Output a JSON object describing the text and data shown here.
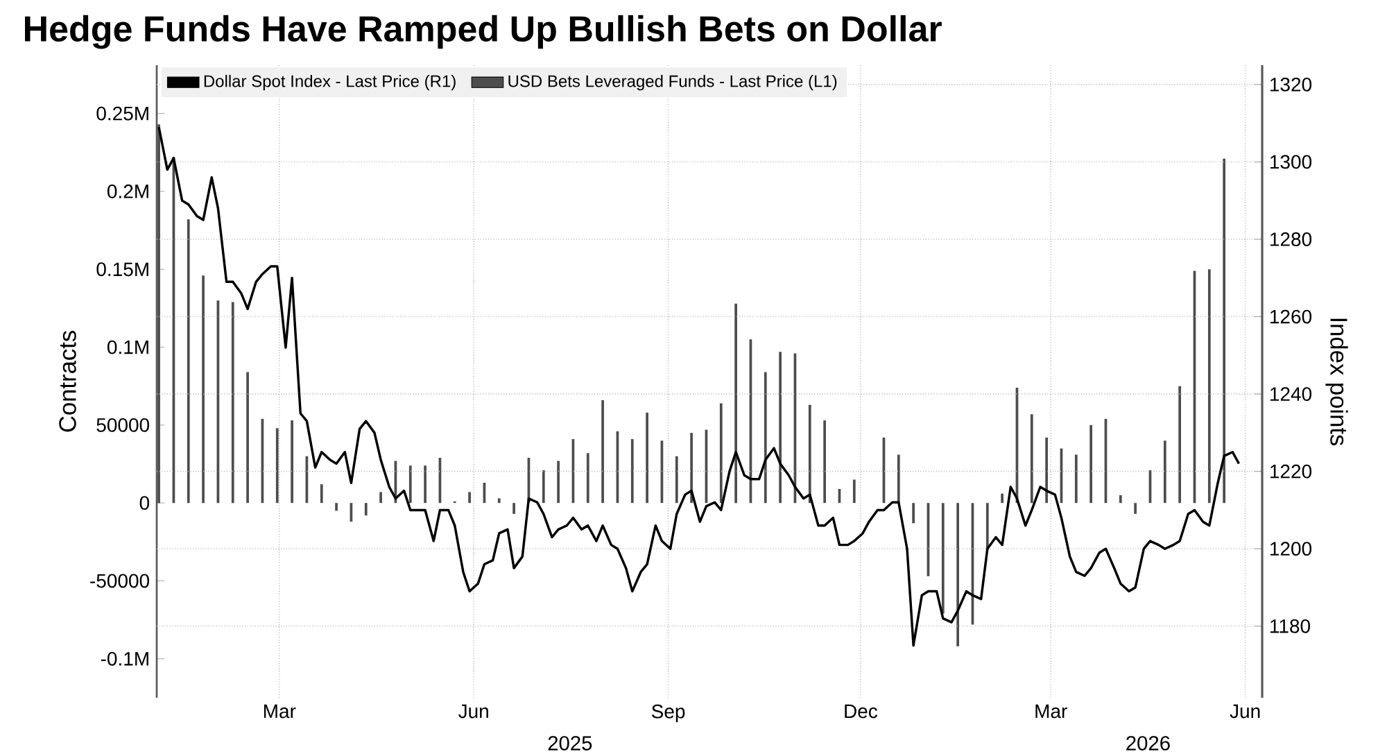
{
  "chart_data": {
    "type": "bar",
    "title": "Hedge Funds Have Ramped Up Bullish Bets on Dollar",
    "ylabel": "Contracts",
    "y2label": "Index points",
    "xlim": [
      "2025-01-02",
      "2026-06-09"
    ],
    "xticks": [
      {
        "value": "2025-03-01",
        "label": "Mar"
      },
      {
        "value": "2025-06-01",
        "label": "Jun"
      },
      {
        "value": "2025-09-01",
        "label": "Sep"
      },
      {
        "value": "2025-12-01",
        "label": "Dec"
      },
      {
        "value": "2026-03-01",
        "label": "Mar"
      },
      {
        "value": "2026-06-01",
        "label": "Jun"
      }
    ],
    "ylim": [
      -125000,
      281000
    ],
    "yticks": [
      {
        "value": -100000,
        "label": "-0.1M"
      },
      -50000,
      0,
      50000,
      {
        "value": 100000,
        "label": "0.1M"
      },
      {
        "value": 150000,
        "label": "0.15M"
      },
      {
        "value": 200000,
        "label": "0.2M"
      },
      {
        "value": 250000,
        "label": "0.25M"
      }
    ],
    "y2lim": [
      1161.5,
      1325
    ],
    "y2ticks": [
      1180,
      1200,
      1220,
      1240,
      1260,
      1280,
      1300,
      1320
    ],
    "grid": true,
    "legend": "top left",
    "annotations": [
      "2025",
      "2026"
    ],
    "series": [
      {
        "name": "Dollar Spot Index - Last Price (R1)",
        "type": "line",
        "axis": "y2",
        "color": "#000000",
        "x": [
          "2025-01-03",
          "2025-01-07",
          "2025-01-10",
          "2025-01-14",
          "2025-01-17",
          "2025-01-21",
          "2025-01-24",
          "2025-01-28",
          "2025-01-31",
          "2025-02-04",
          "2025-02-07",
          "2025-02-11",
          "2025-02-14",
          "2025-02-18",
          "2025-02-21",
          "2025-02-25",
          "2025-02-28",
          "2025-03-04",
          "2025-03-07",
          "2025-03-11",
          "2025-03-14",
          "2025-03-18",
          "2025-03-21",
          "2025-03-25",
          "2025-03-28",
          "2025-04-01",
          "2025-04-04",
          "2025-04-08",
          "2025-04-11",
          "2025-04-15",
          "2025-04-18",
          "2025-04-22",
          "2025-04-25",
          "2025-04-29",
          "2025-05-02",
          "2025-05-06",
          "2025-05-09",
          "2025-05-13",
          "2025-05-16",
          "2025-05-20",
          "2025-05-23",
          "2025-05-27",
          "2025-05-30",
          "2025-06-03",
          "2025-06-06",
          "2025-06-10",
          "2025-06-13",
          "2025-06-17",
          "2025-06-20",
          "2025-06-24",
          "2025-06-27",
          "2025-07-01",
          "2025-07-04",
          "2025-07-08",
          "2025-07-11",
          "2025-07-15",
          "2025-07-18",
          "2025-07-22",
          "2025-07-25",
          "2025-07-29",
          "2025-08-01",
          "2025-08-05",
          "2025-08-08",
          "2025-08-12",
          "2025-08-15",
          "2025-08-19",
          "2025-08-22",
          "2025-08-26",
          "2025-08-29",
          "2025-09-02",
          "2025-09-05",
          "2025-09-09",
          "2025-09-12",
          "2025-09-16",
          "2025-09-19",
          "2025-09-23",
          "2025-09-26",
          "2025-09-30",
          "2025-10-03",
          "2025-10-07",
          "2025-10-10",
          "2025-10-14",
          "2025-10-17",
          "2025-10-21",
          "2025-10-24",
          "2025-10-28",
          "2025-10-31",
          "2025-11-04",
          "2025-11-07",
          "2025-11-11",
          "2025-11-14",
          "2025-11-18",
          "2025-11-21",
          "2025-11-25",
          "2025-11-28",
          "2025-12-02",
          "2025-12-05",
          "2025-12-09",
          "2025-12-12",
          "2025-12-16",
          "2025-12-19",
          "2025-12-23",
          "2025-12-26",
          "2025-12-30",
          "2026-01-02",
          "2026-01-06",
          "2026-01-09",
          "2026-01-13",
          "2026-01-16",
          "2026-01-20",
          "2026-01-23",
          "2026-01-27",
          "2026-01-30",
          "2026-02-03",
          "2026-02-06",
          "2026-02-10",
          "2026-02-13",
          "2026-02-17",
          "2026-02-20",
          "2026-02-24",
          "2026-02-27",
          "2026-03-03",
          "2026-03-06",
          "2026-03-10",
          "2026-03-13",
          "2026-03-17",
          "2026-03-20",
          "2026-03-24",
          "2026-03-27",
          "2026-03-31",
          "2026-04-03",
          "2026-04-07",
          "2026-04-10",
          "2026-04-14",
          "2026-04-17",
          "2026-04-21",
          "2026-04-24",
          "2026-04-28",
          "2026-05-01",
          "2026-05-05",
          "2026-05-08",
          "2026-05-12",
          "2026-05-15",
          "2026-05-19",
          "2026-05-22",
          "2026-05-26",
          "2026-05-29"
        ],
        "values": [
          1309,
          1298,
          1301,
          1290,
          1289,
          1286,
          1285,
          1296,
          1288,
          1269,
          1269,
          1266,
          1262,
          1269,
          1271,
          1273,
          1273,
          1252,
          1270,
          1235,
          1233,
          1221,
          1225,
          1223,
          1222,
          1225,
          1217,
          1231,
          1233,
          1230,
          1223,
          1216,
          1213,
          1215,
          1210,
          1210,
          1210,
          1202,
          1210,
          1210,
          1206,
          1194,
          1189,
          1191,
          1196,
          1197,
          1204,
          1205,
          1195,
          1198,
          1213,
          1212,
          1209,
          1203,
          1205,
          1206,
          1208,
          1205,
          1206,
          1202,
          1206,
          1201,
          1200,
          1195,
          1189,
          1194,
          1196,
          1206,
          1202,
          1200,
          1209,
          1214,
          1215,
          1207,
          1211,
          1212,
          1210,
          1220,
          1225,
          1219,
          1218,
          1218,
          1223,
          1226,
          1222,
          1219,
          1216,
          1213,
          1214,
          1206,
          1206,
          1208,
          1201,
          1201,
          1202,
          1204,
          1207,
          1210,
          1210,
          1212,
          1212,
          1200,
          1175,
          1188,
          1189,
          1189,
          1182,
          1181,
          1184,
          1189,
          1188,
          1187,
          1200,
          1203,
          1201,
          1216,
          1213,
          1206,
          1210,
          1216,
          1215,
          1214,
          1208,
          1198,
          1194,
          1193,
          1195,
          1199,
          1200,
          1195,
          1191,
          1189,
          1190,
          1200,
          1202,
          1201,
          1200,
          1201,
          1202,
          1209,
          1210,
          1207,
          1206,
          1217,
          1224,
          1225,
          1222
        ]
      },
      {
        "name": "USD Bets Leveraged Funds - Last Price (L1)",
        "axis": "y",
        "color": "#4d4d4d",
        "x": [
          "2025-01-03",
          "2025-01-10",
          "2025-01-17",
          "2025-01-24",
          "2025-01-31",
          "2025-02-07",
          "2025-02-14",
          "2025-02-21",
          "2025-02-28",
          "2025-03-07",
          "2025-03-14",
          "2025-03-21",
          "2025-03-28",
          "2025-04-04",
          "2025-04-11",
          "2025-04-18",
          "2025-04-25",
          "2025-05-02",
          "2025-05-09",
          "2025-05-16",
          "2025-05-23",
          "2025-05-30",
          "2025-06-06",
          "2025-06-13",
          "2025-06-20",
          "2025-06-27",
          "2025-07-04",
          "2025-07-11",
          "2025-07-18",
          "2025-07-25",
          "2025-08-01",
          "2025-08-08",
          "2025-08-15",
          "2025-08-22",
          "2025-08-29",
          "2025-09-05",
          "2025-09-12",
          "2025-09-19",
          "2025-09-26",
          "2025-10-03",
          "2025-10-10",
          "2025-10-17",
          "2025-10-24",
          "2025-10-31",
          "2025-11-07",
          "2025-11-14",
          "2025-11-21",
          "2025-11-28",
          "2025-12-05",
          "2025-12-12",
          "2025-12-19",
          "2025-12-26",
          "2026-01-02",
          "2026-01-09",
          "2026-01-16",
          "2026-01-23",
          "2026-01-30",
          "2026-02-06",
          "2026-02-13",
          "2026-02-20",
          "2026-02-27",
          "2026-03-06",
          "2026-03-13",
          "2026-03-20",
          "2026-03-27",
          "2026-04-03",
          "2026-04-10",
          "2026-04-17",
          "2026-04-24",
          "2026-05-01",
          "2026-05-08",
          "2026-05-15",
          "2026-05-22"
        ],
        "values": [
          243000,
          222000,
          182000,
          146000,
          130000,
          129000,
          84000,
          54000,
          48000,
          53000,
          30000,
          12000,
          -5000,
          -12000,
          -8000,
          7000,
          27000,
          24000,
          24000,
          29000,
          1000,
          7000,
          13000,
          3000,
          -7000,
          29000,
          21000,
          27000,
          41000,
          32000,
          66000,
          46000,
          41000,
          58000,
          40000,
          30000,
          45000,
          47000,
          64000,
          128000,
          105000,
          84000,
          97000,
          96000,
          63000,
          53000,
          9000,
          15000,
          null,
          42000,
          31000,
          -13000,
          -47000,
          -71000,
          -92000,
          -78000,
          -30000,
          6000,
          74000,
          57000,
          42000,
          35000,
          31000,
          50000,
          54000,
          5000,
          -7000,
          21000,
          40000,
          75000,
          149000,
          150000,
          221000
        ]
      }
    ]
  }
}
